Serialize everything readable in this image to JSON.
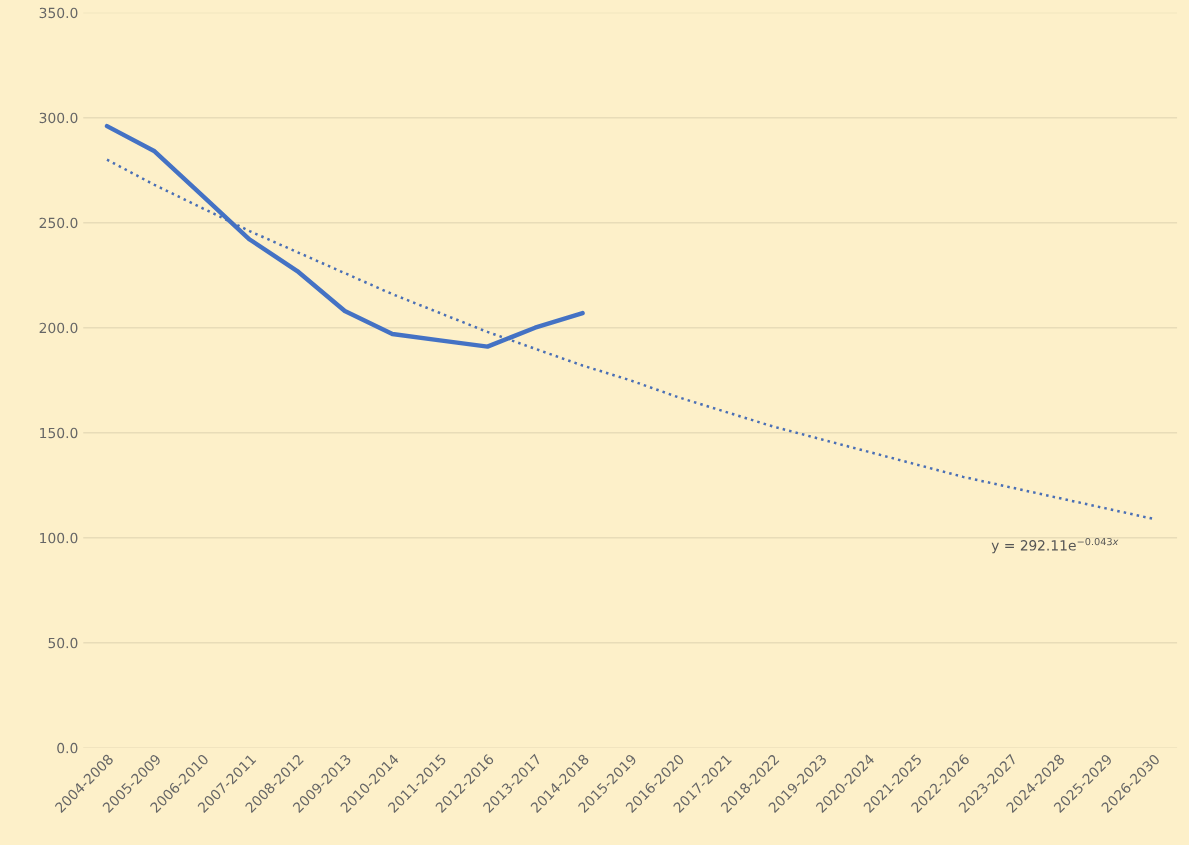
{
  "chart_data": {
    "type": "line",
    "categories": [
      "2004-2008",
      "2005-2009",
      "2006-2010",
      "2007-2011",
      "2008-2012",
      "2009-2013",
      "2010-2014",
      "2011-2015",
      "2012-2016",
      "2013-2017",
      "2014-2018",
      "2015-2019",
      "2016-2020",
      "2017-2021",
      "2018-2022",
      "2019-2023",
      "2020-2024",
      "2021-2025",
      "2022-2026",
      "2023-2027",
      "2024-2028",
      "2025-2029",
      "2026-2030"
    ],
    "series": [
      {
        "color": "#4472c4",
        "line_style": "solid",
        "values": [
          296,
          284,
          263,
          242,
          227,
          208,
          197,
          194,
          191,
          200,
          207,
          null,
          null,
          null,
          null,
          null,
          null,
          null,
          null,
          null,
          null,
          null,
          null
        ]
      },
      {
        "type": "line",
        "color": "#4a6fb5",
        "line_style": "dotted",
        "values": [
          280,
          268,
          257,
          246,
          236,
          226,
          216,
          207,
          198,
          190,
          182,
          175,
          167,
          160,
          153,
          147,
          141,
          135,
          129,
          124,
          119,
          114,
          109
        ]
      }
    ],
    "ylim": [
      0,
      350
    ],
    "yticks": [
      {
        "value": 0,
        "label": "0.0"
      },
      {
        "value": 50,
        "label": "50.0"
      },
      {
        "value": 100,
        "label": "100.0"
      },
      {
        "value": 150,
        "label": "150.0"
      },
      {
        "value": 200,
        "label": "200.0"
      },
      {
        "value": 250,
        "label": "250.0"
      },
      {
        "value": 300,
        "label": "300.0"
      },
      {
        "value": 350,
        "label": "350.0"
      }
    ],
    "grid": "y",
    "annotations": [
      "y = 292.11e$^{−0.043x}$"
    ]
  }
}
